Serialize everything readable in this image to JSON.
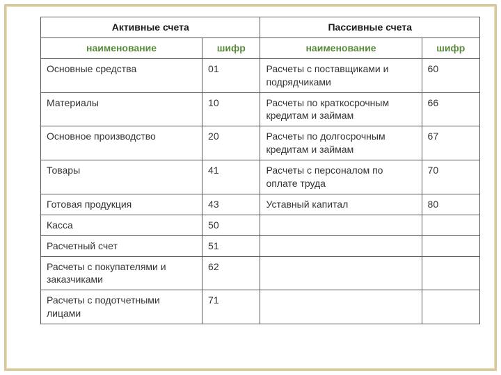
{
  "headers": {
    "active": "Активные счета",
    "passive": "Пассивные счета",
    "name": "наименование",
    "code": "шифр"
  },
  "rows": [
    {
      "a_name": "Основные средства",
      "a_code": "01",
      "p_name": "Расчеты с поставщиками и подрядчиками",
      "p_code": "60"
    },
    {
      "a_name": "Материалы",
      "a_code": "10",
      "p_name": "Расчеты по краткосрочным кредитам и займам",
      "p_code": "66"
    },
    {
      "a_name": "Основное производство",
      "a_code": "20",
      "p_name": "Расчеты по долгосрочным кредитам и займам",
      "p_code": "67"
    },
    {
      "a_name": "Товары",
      "a_code": "41",
      "p_name": "Расчеты с персоналом по оплате труда",
      "p_code": "70"
    },
    {
      "a_name": "Готовая продукция",
      "a_code": "43",
      "p_name": "Уставный капитал",
      "p_code": "80"
    },
    {
      "a_name": "Касса",
      "a_code": "50",
      "p_name": "",
      "p_code": ""
    },
    {
      "a_name": "Расчетный счет",
      "a_code": "51",
      "p_name": "",
      "p_code": ""
    },
    {
      "a_name": "Расчеты с покупателями и заказчиками",
      "a_code": "62",
      "p_name": "",
      "p_code": ""
    },
    {
      "a_name": "Расчеты с подотчетными лицами",
      "a_code": "71",
      "p_name": "",
      "p_code": ""
    }
  ]
}
